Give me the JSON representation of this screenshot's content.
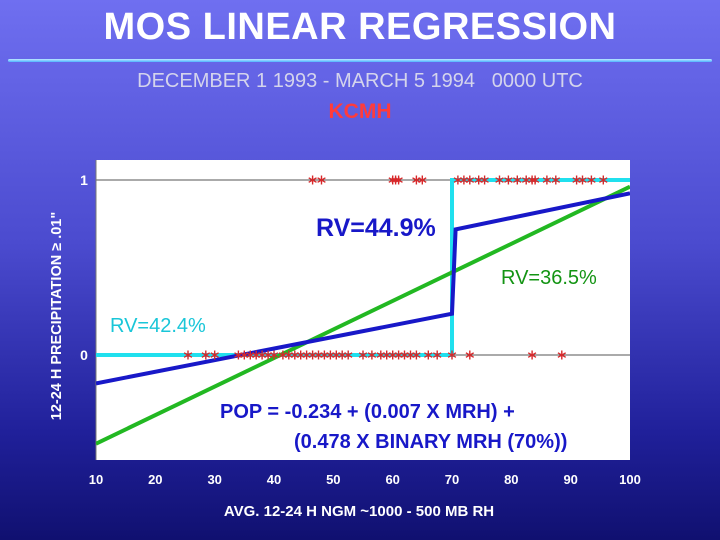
{
  "slide": {
    "title": "MOS LINEAR REGRESSION",
    "subtitle": "DECEMBER 1 1993 - MARCH 5 1994   0000 UTC",
    "station": "KCMH"
  },
  "chart_data": {
    "type": "scatter",
    "title": "MOS LINEAR REGRESSION",
    "xlabel": "AVG. 12-24 H NGM ~1000 - 500 MB RH",
    "ylabel": "12-24 H PRECIPITATION ≥ .01\"",
    "xlim": [
      10,
      100
    ],
    "ylim": [
      -0.6,
      1.03
    ],
    "x_ticks": [
      "10",
      "20",
      "30",
      "40",
      "50",
      "60",
      "70",
      "80",
      "90",
      "100"
    ],
    "y_ticks": [
      "0",
      "1"
    ],
    "grid": false,
    "series": [
      {
        "kind": "points",
        "color": "#d8282a",
        "y": 1,
        "x": [
          46.5,
          48,
          60,
          60.5,
          61,
          64,
          65,
          71,
          72,
          73,
          74.5,
          75.5,
          78,
          79.5,
          81,
          82.5,
          83.5,
          84,
          86,
          87.5,
          91,
          92,
          93.5,
          95.5
        ]
      },
      {
        "kind": "points",
        "color": "#d8282a",
        "y": 0,
        "x": [
          25.5,
          28.5,
          30,
          34,
          35,
          36,
          37,
          38,
          39,
          40,
          41.5,
          42.5,
          43.5,
          44.5,
          45.5,
          46.5,
          47.5,
          48.5,
          49.5,
          50.5,
          51.5,
          52.5,
          55,
          56.5,
          58,
          59,
          60,
          61,
          62,
          63,
          64,
          66,
          67.5,
          70,
          73,
          83.5,
          88.5
        ]
      },
      {
        "name": "RV=44.9%",
        "kind": "line",
        "color": "#1818c8",
        "points": [
          [
            10,
            -0.162
          ],
          [
            70,
            0.236
          ],
          [
            70.6,
            0.718
          ],
          [
            100,
            0.924
          ]
        ]
      },
      {
        "name": "RV=36.5%",
        "kind": "line",
        "color": "#22b822",
        "points": [
          [
            10,
            -0.507
          ],
          [
            100,
            0.962
          ]
        ]
      },
      {
        "name": "RV=42.4%",
        "kind": "line",
        "color": "#20e0ee",
        "points": [
          [
            10,
            0
          ],
          [
            70,
            0
          ],
          [
            70,
            1
          ],
          [
            100,
            1
          ]
        ]
      }
    ],
    "annotations": [
      {
        "text": "RV=44.9%",
        "color": "#1818c8"
      },
      {
        "text": "RV=36.5%",
        "color": "#139413"
      },
      {
        "text": "RV=42.4%",
        "color": "#19c6d8"
      },
      {
        "text": "POP = -0.234 + (0.007 X MRH) +",
        "color": "#1818c8"
      },
      {
        "text": "(0.478 X BINARY MRH (70%))",
        "color": "#1818c8"
      }
    ]
  }
}
